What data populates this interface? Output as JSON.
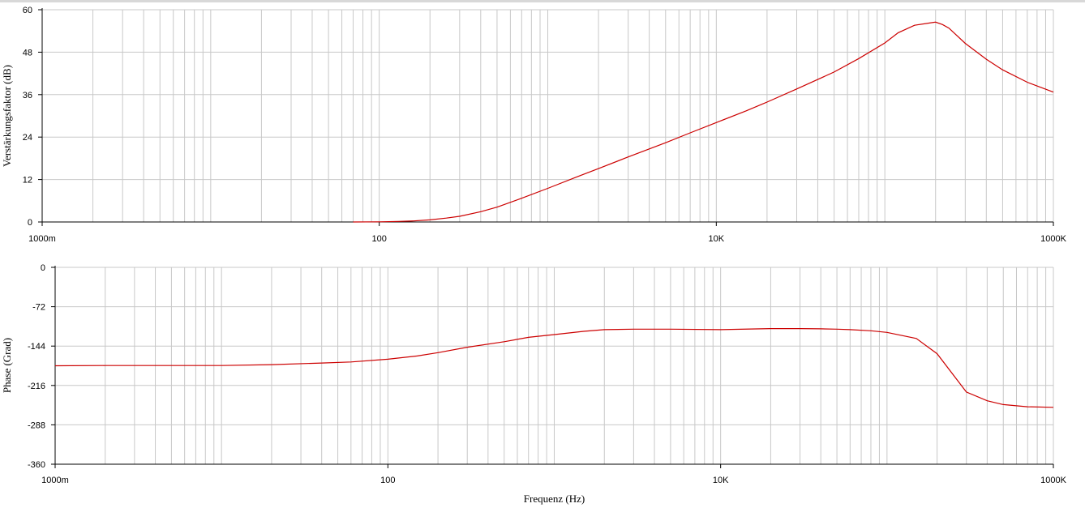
{
  "chart_data": [
    {
      "type": "line",
      "title": "",
      "xlabel": "",
      "ylabel": "Verstärkungsfaktor (dB)",
      "x_scale": "log",
      "xlim": [
        1,
        1000000
      ],
      "ylim": [
        0,
        60
      ],
      "y_ticks": [
        0,
        12,
        24,
        36,
        48,
        60
      ],
      "x_tick_values": [
        1,
        100,
        10000,
        1000000
      ],
      "x_tick_labels": [
        "1000m",
        "100",
        "10K",
        "1000K"
      ],
      "grid": true,
      "series": [
        {
          "color": "#cc0000",
          "x": [
            70,
            100,
            130,
            160,
            200,
            250,
            300,
            400,
            500,
            700,
            1000,
            1500,
            2000,
            3000,
            5000,
            7000,
            10000,
            15000,
            20000,
            30000,
            50000,
            70000,
            100000,
            120000,
            150000,
            200000,
            220000,
            240000,
            300000,
            400000,
            500000,
            700000,
            1000000
          ],
          "y": [
            0,
            0.05,
            0.15,
            0.3,
            0.6,
            1.1,
            1.6,
            2.9,
            4.2,
            6.7,
            9.5,
            12.8,
            15.1,
            18.4,
            22.4,
            25.2,
            28.1,
            31.4,
            33.9,
            37.6,
            42.4,
            46.2,
            50.6,
            53.5,
            55.6,
            56.5,
            55.8,
            54.8,
            50.5,
            46.0,
            43.0,
            39.5,
            36.7
          ]
        }
      ]
    },
    {
      "type": "line",
      "title": "",
      "xlabel": "Frequenz (Hz)",
      "ylabel": "Phase (Grad)",
      "x_scale": "log",
      "xlim": [
        1,
        1000000
      ],
      "ylim": [
        -360,
        0
      ],
      "y_ticks": [
        0,
        -72,
        -144,
        -216,
        -288,
        -360
      ],
      "x_tick_values": [
        1,
        100,
        10000,
        1000000
      ],
      "x_tick_labels": [
        "1000m",
        "100",
        "10K",
        "1000K"
      ],
      "grid": true,
      "series": [
        {
          "color": "#cc0000",
          "x": [
            1,
            2,
            5,
            10,
            20,
            40,
            60,
            100,
            150,
            200,
            300,
            500,
            700,
            1000,
            1500,
            2000,
            3000,
            5000,
            10000,
            20000,
            30000,
            40000,
            50000,
            60000,
            80000,
            100000,
            150000,
            200000,
            300000,
            400000,
            500000,
            700000,
            1000000
          ],
          "y": [
            -180,
            -179.5,
            -179.5,
            -179.5,
            -178,
            -175,
            -173,
            -168,
            -162,
            -156,
            -146,
            -136,
            -128,
            -123,
            -117,
            -114,
            -113,
            -113,
            -114,
            -112,
            -112,
            -112.5,
            -113,
            -114,
            -116,
            -119,
            -130,
            -158,
            -228,
            -244,
            -251,
            -255,
            -256
          ]
        }
      ]
    }
  ]
}
